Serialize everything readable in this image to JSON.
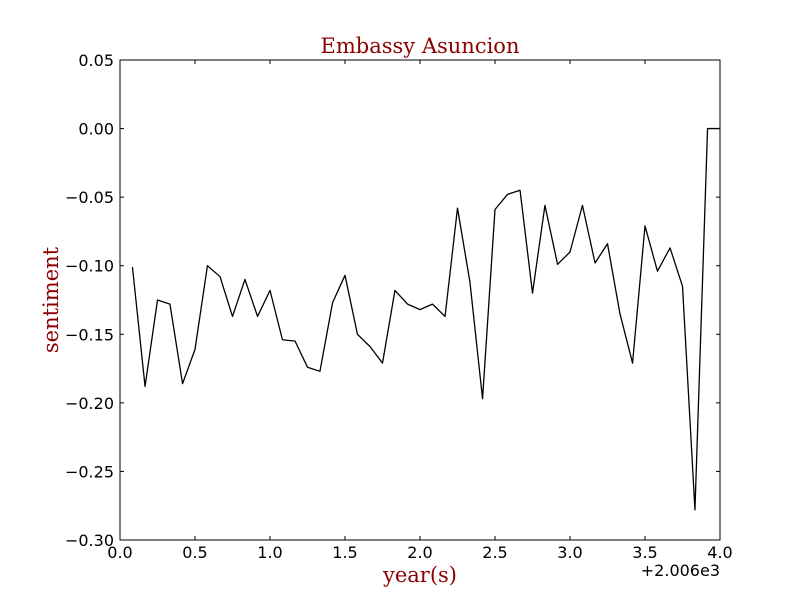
{
  "chart_data": {
    "type": "line",
    "title": "Embassy Asuncion",
    "xlabel": "year(s)",
    "ylabel": "sentiment",
    "x_offset_label": "+2.006e3",
    "x_offset": 2006,
    "xlim": [
      0.0,
      4.0
    ],
    "ylim": [
      -0.3,
      0.05
    ],
    "xticks": [
      0.0,
      0.5,
      1.0,
      1.5,
      2.0,
      2.5,
      3.0,
      3.5,
      4.0
    ],
    "xtick_labels": [
      "0.0",
      "0.5",
      "1.0",
      "1.5",
      "2.0",
      "2.5",
      "3.0",
      "3.5",
      "4.0"
    ],
    "yticks": [
      0.05,
      0.0,
      -0.05,
      -0.1,
      -0.15,
      -0.2,
      -0.25,
      -0.3
    ],
    "ytick_labels": [
      "0.05",
      "0.00",
      "−0.05",
      "−0.10",
      "−0.15",
      "−0.20",
      "−0.25",
      "−0.30"
    ],
    "grid": false,
    "colors": {
      "line": "#000000",
      "label": "#8b0000",
      "axes": "#000000",
      "background": "#ffffff"
    },
    "series": [
      {
        "name": "sentiment",
        "x": [
          0.083,
          0.167,
          0.25,
          0.333,
          0.417,
          0.5,
          0.583,
          0.667,
          0.75,
          0.833,
          0.917,
          1.0,
          1.083,
          1.167,
          1.25,
          1.333,
          1.417,
          1.5,
          1.583,
          1.667,
          1.75,
          1.833,
          1.917,
          2.0,
          2.083,
          2.167,
          2.25,
          2.333,
          2.417,
          2.5,
          2.583,
          2.667,
          2.75,
          2.833,
          2.917,
          3.0,
          3.083,
          3.167,
          3.25,
          3.333,
          3.417,
          3.5,
          3.583,
          3.667,
          3.75,
          3.833,
          3.917,
          4.0
        ],
        "values": [
          -0.101,
          -0.188,
          -0.125,
          -0.128,
          -0.186,
          -0.161,
          -0.1,
          -0.108,
          -0.137,
          -0.11,
          -0.137,
          -0.118,
          -0.154,
          -0.155,
          -0.174,
          -0.177,
          -0.127,
          -0.107,
          -0.15,
          -0.159,
          -0.171,
          -0.118,
          -0.128,
          -0.132,
          -0.128,
          -0.137,
          -0.058,
          -0.112,
          -0.197,
          -0.059,
          -0.048,
          -0.045,
          -0.12,
          -0.056,
          -0.099,
          -0.09,
          -0.056,
          -0.098,
          -0.084,
          -0.135,
          -0.171,
          -0.071,
          -0.104,
          -0.087,
          -0.115,
          -0.278,
          0.0,
          0.0
        ]
      }
    ]
  }
}
